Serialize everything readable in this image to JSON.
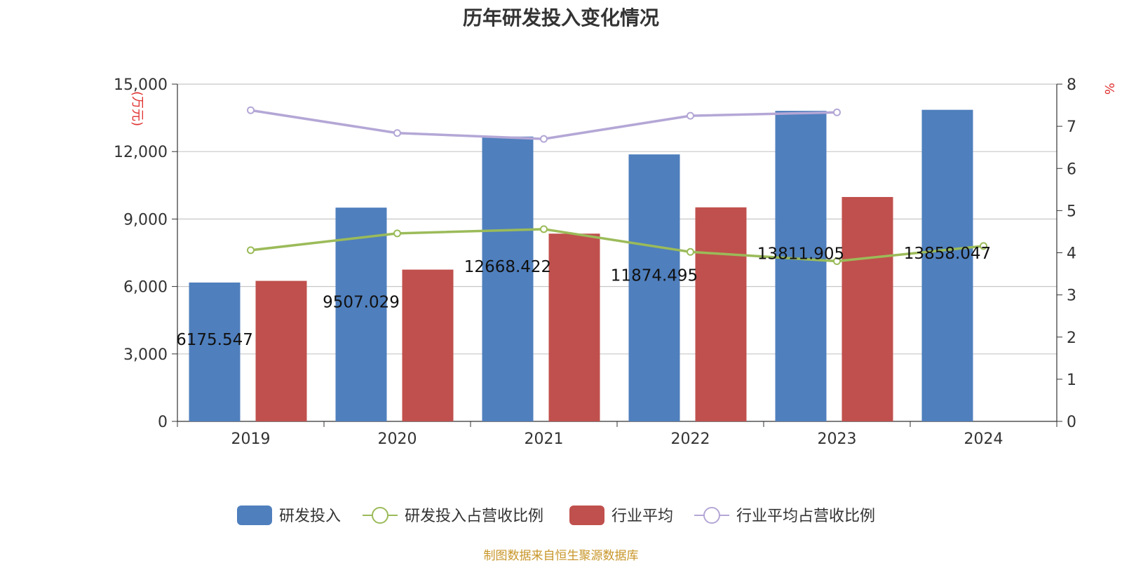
{
  "chart_data": {
    "type": "bar",
    "title": "历年研发投入变化情况",
    "categories": [
      "2019",
      "2020",
      "2021",
      "2022",
      "2023",
      "2024"
    ],
    "y_left": {
      "unit": "(万元)",
      "min": 0,
      "max": 15000,
      "ticks": [
        0,
        3000,
        6000,
        9000,
        12000,
        15000
      ],
      "tick_labels": [
        "0",
        "3,000",
        "6,000",
        "9,000",
        "12,000",
        "15,000"
      ]
    },
    "y_right": {
      "unit": "%",
      "min": 0,
      "max": 8,
      "ticks": [
        0,
        1,
        2,
        3,
        4,
        5,
        6,
        7,
        8
      ],
      "tick_labels": [
        "0",
        "1",
        "2",
        "3",
        "4",
        "5",
        "6",
        "7",
        "8"
      ]
    },
    "grid": true,
    "legend_position": "bottom-center",
    "series": [
      {
        "name": "研发投入",
        "kind": "bar",
        "axis": "left",
        "color": "#4f7fbd",
        "values": [
          6175.547,
          9507.029,
          12668.422,
          11874.495,
          13811.905,
          13858.047
        ],
        "labels": [
          "6175.547",
          "9507.029",
          "12668.422",
          "11874.495",
          "13811.905",
          "13858.047"
        ]
      },
      {
        "name": "研发投入占营收比例",
        "kind": "line",
        "axis": "right",
        "color": "#9bbb59",
        "values": [
          4.06,
          4.46,
          4.56,
          4.02,
          3.8,
          4.16
        ]
      },
      {
        "name": "行业平均",
        "kind": "bar",
        "axis": "left",
        "color": "#c0504d",
        "values": [
          6250,
          6750,
          8350,
          9520,
          9980,
          null
        ]
      },
      {
        "name": "行业平均占营收比例",
        "kind": "line",
        "axis": "right",
        "color": "#b4a7d6",
        "values": [
          7.38,
          6.84,
          6.7,
          7.25,
          7.33,
          null
        ]
      }
    ],
    "source": "制图数据来自恒生聚源数据库"
  }
}
